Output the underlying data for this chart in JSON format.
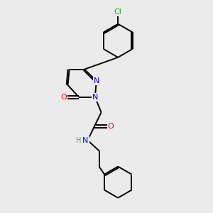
{
  "background_color": "#ebebeb",
  "bond_color": "#000000",
  "bond_width": 1.4,
  "atom_colors": {
    "N": "#0000ff",
    "O": "#ff0000",
    "Cl": "#00bb00",
    "C": "#000000",
    "H": "#5a9090"
  },
  "font_size": 8,
  "fig_size": [
    3.0,
    3.0
  ],
  "dpi": 100
}
